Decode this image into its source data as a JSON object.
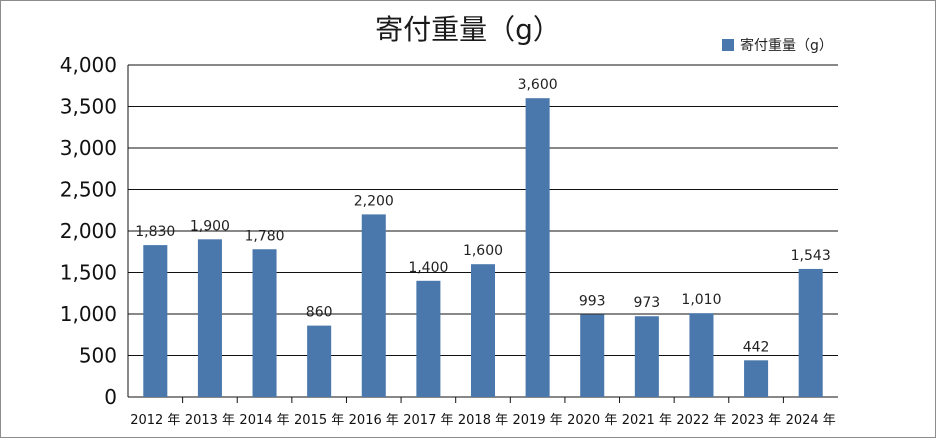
{
  "chart_data": {
    "type": "bar",
    "title": "寄付重量（g）",
    "categories": [
      "2012 年",
      "2013 年",
      "2014 年",
      "2015 年",
      "2016 年",
      "2017 年",
      "2018 年",
      "2019 年",
      "2020 年",
      "2021 年",
      "2022 年",
      "2023 年",
      "2024 年"
    ],
    "series": [
      {
        "name": "寄付重量（g）",
        "values": [
          1830,
          1900,
          1780,
          860,
          2200,
          1400,
          1600,
          3600,
          993,
          973,
          1010,
          442,
          1543
        ],
        "data_labels": [
          "1,830",
          "1,900",
          "1,780",
          "860",
          "2,200",
          "1,400",
          "1,600",
          "3,600",
          "993",
          "973",
          "1,010",
          "442",
          "1,543"
        ],
        "color": "#4a78ac"
      }
    ],
    "yticks": [
      "0",
      "500",
      "1,000",
      "1,500",
      "2,000",
      "2,500",
      "3,000",
      "3,500",
      "4,000"
    ],
    "ylim": [
      0,
      4000
    ],
    "grid": true,
    "legend_position": "top-right"
  }
}
